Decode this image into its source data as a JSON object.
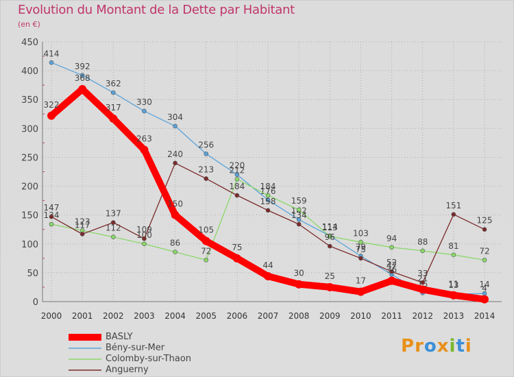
{
  "title": "Evolution du Montant de la Dette par Habitant",
  "unit_label": "(en €)",
  "brand": {
    "text": "Proxiti",
    "letters": [
      "P",
      "r",
      "o",
      "x",
      "i",
      "t",
      "i"
    ],
    "colors": [
      "#e8901a",
      "#e8901a",
      "#3b8fd6",
      "#e8901a",
      "#78b82a",
      "#3b8fd6",
      "#e8901a"
    ]
  },
  "chart_data": {
    "type": "line",
    "title": "Evolution du Montant de la Dette par Habitant",
    "ylabel": "(en €)",
    "xlabel": "",
    "x": [
      "2000",
      "2001",
      "2002",
      "2003",
      "2004",
      "2005",
      "2006",
      "2007",
      "2008",
      "2009",
      "2010",
      "2011",
      "2012",
      "2013",
      "2014"
    ],
    "ylim": [
      0,
      450
    ],
    "yticks": [
      0,
      50,
      100,
      150,
      200,
      250,
      300,
      350,
      400,
      450
    ],
    "grid": true,
    "legend_position": "bottom-left",
    "series": [
      {
        "name": "BASLY",
        "color": "#ff0000",
        "emphasis": true,
        "values": [
          322,
          368,
          317,
          263,
          150,
          105,
          75,
          44,
          30,
          25,
          17,
          36,
          21,
          11,
          4
        ]
      },
      {
        "name": "Bény-sur-Mer",
        "color": "#5ba3d9",
        "values": [
          414,
          392,
          362,
          330,
          304,
          256,
          220,
          176,
          142,
          114,
          79,
          47,
          15,
          13,
          14
        ]
      },
      {
        "name": "Colomby-sur-Thaon",
        "color": "#8bd86a",
        "values": [
          134,
          123,
          112,
          100,
          86,
          72,
          212,
          184,
          159,
          113,
          103,
          94,
          88,
          81,
          72
        ]
      },
      {
        "name": "Anguerny",
        "color": "#7b2a2a",
        "values": [
          147,
          117,
          137,
          109,
          null,
          213,
          184,
          158,
          134,
          96,
          75,
          52,
          33,
          151,
          125
        ]
      }
    ],
    "anguerny_2004": 240
  }
}
